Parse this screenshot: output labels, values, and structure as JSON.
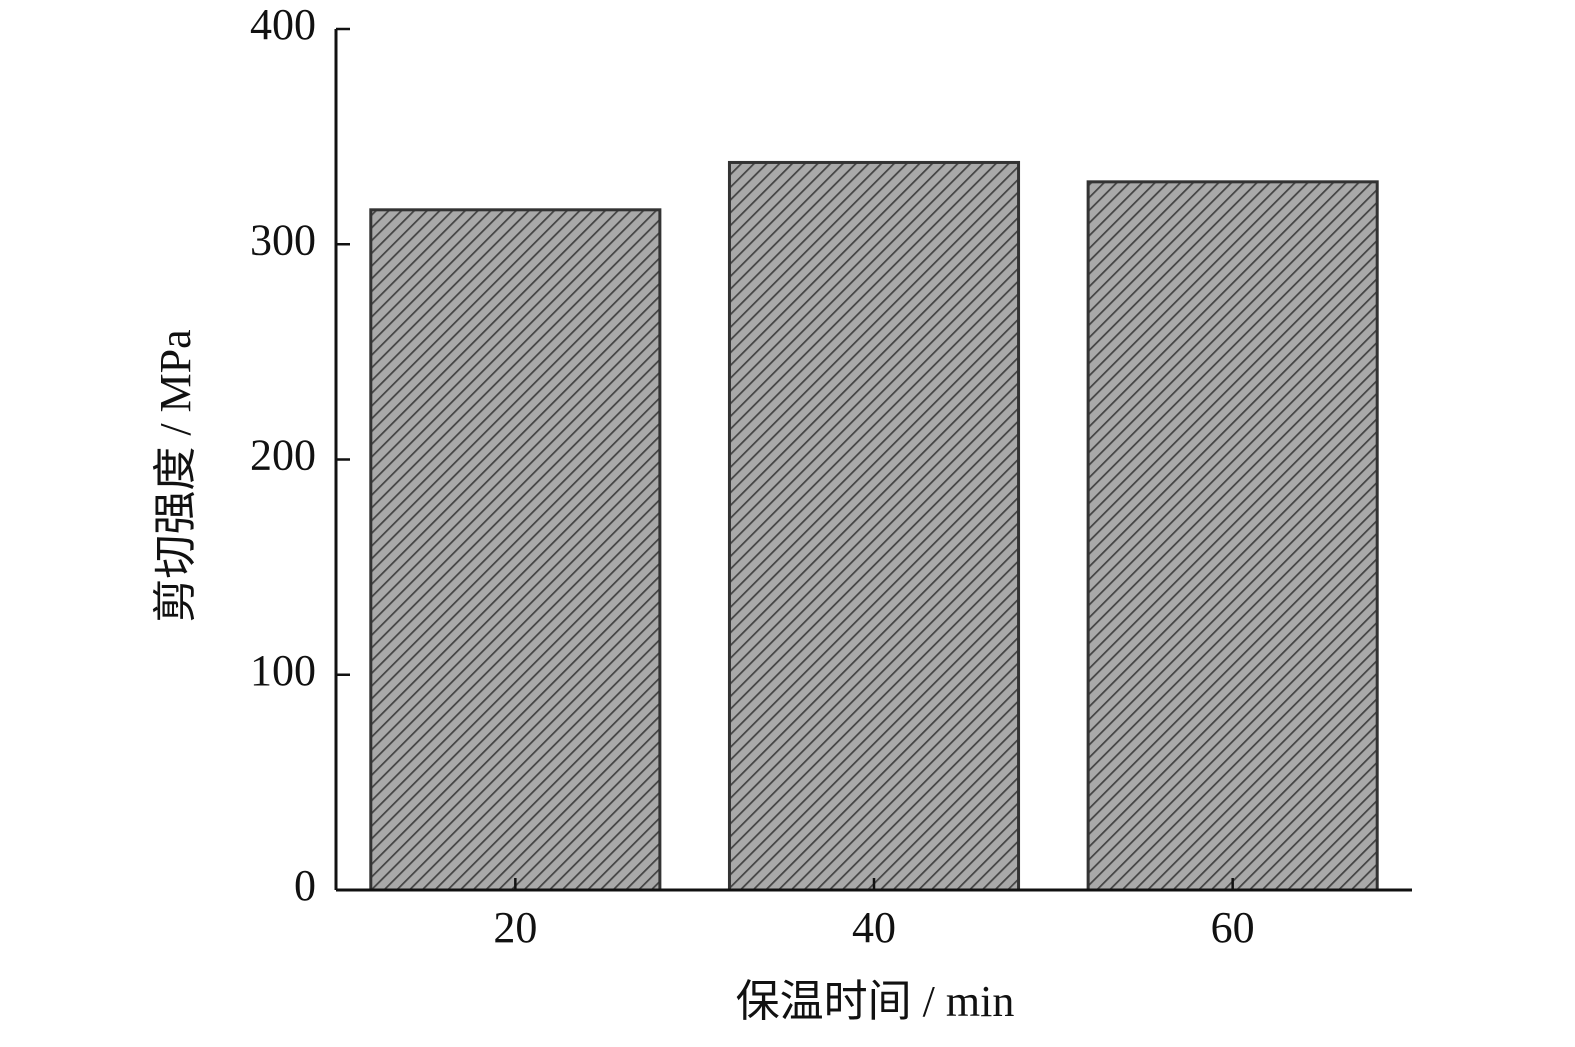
{
  "chart_data": {
    "type": "bar",
    "x_label": "保温时间 / min",
    "y_label": "剪切强度 / MPa",
    "categories": [
      "20",
      "40",
      "60"
    ],
    "values": [
      316,
      338,
      329
    ],
    "color": "#a9a9a9",
    "ylim": [
      0,
      400
    ],
    "yticks": [
      0,
      100,
      200,
      300,
      400
    ]
  }
}
